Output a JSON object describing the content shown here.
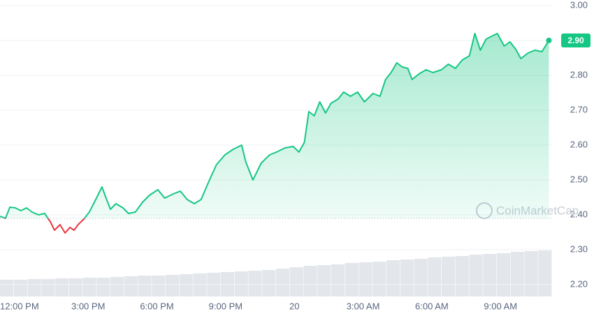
{
  "chart_data": {
    "type": "line",
    "x": [
      -0.85,
      -0.61,
      -0.42,
      -0.18,
      0.06,
      0.31,
      0.55,
      0.83,
      1.1,
      1.35,
      1.53,
      1.77,
      1.99,
      2.2,
      2.38,
      2.56,
      2.81,
      3.05,
      3.3,
      3.6,
      3.78,
      3.97,
      4.21,
      4.52,
      4.76,
      5.06,
      5.37,
      5.67,
      6.04,
      6.34,
      6.71,
      7.02,
      7.32,
      7.63,
      7.93,
      8.24,
      8.6,
      8.97,
      9.33,
      9.7,
      9.88,
      10.19,
      10.55,
      10.92,
      11.22,
      11.59,
      11.95,
      12.2,
      12.44,
      12.63,
      12.87,
      13.11,
      13.36,
      13.6,
      13.91,
      14.15,
      14.45,
      14.76,
      15.06,
      15.43,
      15.74,
      15.98,
      16.22,
      16.47,
      16.71,
      16.95,
      17.14,
      17.44,
      17.75,
      18.05,
      18.42,
      18.72,
      19.03,
      19.33,
      19.64,
      19.88,
      20.12,
      20.37,
      20.61,
      20.86,
      21.16,
      21.41,
      21.65,
      21.89,
      22.2,
      22.5,
      22.81,
      23.11
    ],
    "values": [
      2.396,
      2.39,
      2.422,
      2.42,
      2.412,
      2.42,
      2.408,
      2.4,
      2.404,
      2.38,
      2.356,
      2.372,
      2.348,
      2.364,
      2.356,
      2.372,
      2.388,
      2.408,
      2.44,
      2.48,
      2.448,
      2.416,
      2.432,
      2.42,
      2.404,
      2.408,
      2.436,
      2.456,
      2.472,
      2.448,
      2.46,
      2.468,
      2.444,
      2.432,
      2.444,
      2.492,
      2.544,
      2.572,
      2.588,
      2.6,
      2.552,
      2.5,
      2.548,
      2.572,
      2.58,
      2.592,
      2.596,
      2.58,
      2.608,
      2.696,
      2.684,
      2.724,
      2.692,
      2.72,
      2.732,
      2.752,
      2.74,
      2.752,
      2.724,
      2.748,
      2.74,
      2.788,
      2.808,
      2.836,
      2.824,
      2.82,
      2.788,
      2.804,
      2.816,
      2.808,
      2.816,
      2.832,
      2.82,
      2.844,
      2.856,
      2.92,
      2.872,
      2.904,
      2.912,
      2.92,
      2.884,
      2.896,
      2.876,
      2.848,
      2.864,
      2.872,
      2.868,
      2.9
    ],
    "price_label": "2.90",
    "reference_line": 2.39,
    "up_color": "#16c784",
    "down_color": "#ea3943",
    "volume": {
      "axis": "y2",
      "color": "#e3e6eb",
      "values": [
        12,
        12,
        12.5,
        12.5,
        13,
        13,
        13.5,
        13.5,
        14,
        14.5,
        15,
        15,
        15.5,
        16,
        16.5,
        17,
        17.5,
        18,
        18.5,
        19,
        20,
        21,
        22,
        22.5,
        23,
        24,
        24.5,
        25,
        26,
        26.5,
        27,
        28,
        28.5,
        29,
        30,
        30.5,
        31,
        32,
        32.5,
        33
      ]
    },
    "y2lim": [
      0,
      100
    ],
    "xlim": [
      -0.85,
      23.25
    ],
    "xticks": [
      {
        "value": 0,
        "label": "12:00 PM"
      },
      {
        "value": 3,
        "label": "3:00 PM"
      },
      {
        "value": 6,
        "label": "6:00 PM"
      },
      {
        "value": 9,
        "label": "9:00 PM"
      },
      {
        "value": 12,
        "label": "20"
      },
      {
        "value": 15,
        "label": "3:00 AM"
      },
      {
        "value": 18,
        "label": "6:00 AM"
      },
      {
        "value": 21,
        "label": "9:00 AM"
      }
    ],
    "ylim": [
      2.2,
      3.0
    ],
    "yticks": [
      {
        "value": 2.2,
        "label": "2.20"
      },
      {
        "value": 2.3,
        "label": "2.30"
      },
      {
        "value": 2.4,
        "label": "2.40"
      },
      {
        "value": 2.5,
        "label": "2.50"
      },
      {
        "value": 2.6,
        "label": "2.60"
      },
      {
        "value": 2.7,
        "label": "2.70"
      },
      {
        "value": 2.8,
        "label": "2.80"
      },
      {
        "value": 2.9,
        "label": "2.90"
      },
      {
        "value": 3.0,
        "label": "3.00"
      }
    ],
    "grid": true,
    "watermark": "CoinMarketCap"
  }
}
